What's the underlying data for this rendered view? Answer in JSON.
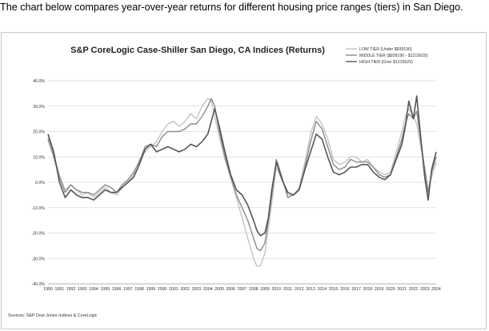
{
  "intro_text": "The chart below compares year-over-year returns for different housing price ranges (tiers) in San Diego.",
  "source": "Sources: S&P Dow Jones Indices & CoreLogic",
  "chart_data": {
    "type": "line",
    "title": "S&P CoreLogic Case-Shiller San Diego, CA Indices (Returns)",
    "ylim": [
      -40,
      40
    ],
    "yticks": [
      "40.0%",
      "30.0%",
      "20.0%",
      "10.0%",
      "0.0%",
      "-10.0%",
      "-20.0%",
      "-30.0%",
      "-40.0%"
    ],
    "xlim": [
      1990,
      2024
    ],
    "xticks": [
      "1990",
      "1991",
      "1992",
      "1993",
      "1994",
      "1995",
      "1996",
      "1997",
      "1998",
      "1999",
      "2000",
      "2001",
      "2002",
      "2003",
      "2004",
      "2005",
      "2006",
      "2007",
      "2008",
      "2009",
      "2010",
      "2011",
      "2012",
      "2013",
      "2014",
      "2015",
      "2016",
      "2017",
      "2018",
      "2019",
      "2020",
      "2021",
      "2022",
      "2023",
      "2024"
    ],
    "grid": true,
    "legend_position": "top-right",
    "x": [
      1990.0,
      1990.5,
      1991.0,
      1991.5,
      1992.0,
      1992.5,
      1993.0,
      1993.5,
      1994.0,
      1994.5,
      1995.0,
      1995.5,
      1996.0,
      1996.5,
      1997.0,
      1997.5,
      1998.0,
      1998.5,
      1999.0,
      1999.5,
      2000.0,
      2000.5,
      2001.0,
      2001.5,
      2002.0,
      2002.5,
      2003.0,
      2003.5,
      2004.0,
      2004.3,
      2004.6,
      2005.0,
      2005.5,
      2006.0,
      2006.5,
      2007.0,
      2007.5,
      2008.0,
      2008.3,
      2008.6,
      2009.0,
      2009.3,
      2009.6,
      2010.0,
      2010.5,
      2011.0,
      2011.5,
      2012.0,
      2012.5,
      2013.0,
      2013.5,
      2014.0,
      2014.5,
      2015.0,
      2015.5,
      2016.0,
      2016.5,
      2017.0,
      2017.5,
      2018.0,
      2018.5,
      2019.0,
      2019.5,
      2020.0,
      2020.5,
      2021.0,
      2021.3,
      2021.6,
      2022.0,
      2022.3,
      2022.6,
      2023.0,
      2023.3,
      2023.6,
      2024.0
    ],
    "series": [
      {
        "name": "LOW TIER (Under $839190)",
        "color": "#c4c4c4",
        "values": [
          18,
          11,
          3,
          -3,
          -1,
          -3,
          -5,
          -4,
          -6,
          -4,
          -2,
          -4,
          -5,
          -2,
          0,
          3,
          9,
          12,
          14,
          16,
          20,
          23,
          24,
          22,
          24,
          27,
          25,
          30,
          33,
          32,
          26,
          18,
          9,
          2,
          -6,
          -14,
          -22,
          -30,
          -33,
          -33,
          -28,
          -18,
          -8,
          6,
          1,
          -5,
          -5,
          -2,
          8,
          19,
          26,
          23,
          17,
          9,
          7,
          8,
          10,
          10,
          8,
          9,
          6,
          4,
          3,
          4,
          12,
          20,
          26,
          29,
          26,
          23,
          15,
          6,
          -3,
          2,
          8
        ]
      },
      {
        "name": "MIDDLE TIER ($839190 - $1215629)",
        "color": "#8a8a8a",
        "values": [
          17,
          10,
          2,
          -4,
          -1,
          -3,
          -4,
          -4,
          -5,
          -3,
          -1,
          -2,
          -4,
          -1,
          1,
          4,
          8,
          14,
          15,
          14,
          18,
          20,
          20,
          20,
          21,
          23,
          23,
          26,
          30,
          33,
          30,
          20,
          10,
          2,
          -5,
          -10,
          -15,
          -22,
          -26,
          -27,
          -24,
          -15,
          -5,
          9,
          2,
          -6,
          -5,
          -3,
          6,
          16,
          24,
          21,
          14,
          7,
          5,
          6,
          9,
          8,
          8,
          8,
          6,
          3,
          2,
          3,
          10,
          17,
          23,
          27,
          25,
          28,
          18,
          5,
          -4,
          4,
          10
        ]
      },
      {
        "name": "HIGH TIER (Over $1215629)",
        "color": "#555555",
        "values": [
          19,
          12,
          0,
          -6,
          -3,
          -5,
          -6,
          -6,
          -7,
          -5,
          -3,
          -4,
          -4,
          -2,
          0,
          2,
          7,
          13,
          15,
          12,
          13,
          14,
          13,
          12,
          13,
          15,
          14,
          16,
          19,
          24,
          29,
          22,
          12,
          3,
          -3,
          -5,
          -9,
          -15,
          -19,
          -21,
          -20,
          -14,
          -3,
          8,
          1,
          -4,
          -5,
          -3,
          5,
          12,
          19,
          17,
          10,
          4,
          3,
          4,
          6,
          6,
          7,
          7,
          4,
          2,
          1,
          3,
          9,
          15,
          22,
          32,
          25,
          34,
          20,
          2,
          -7,
          5,
          12
        ]
      }
    ]
  }
}
